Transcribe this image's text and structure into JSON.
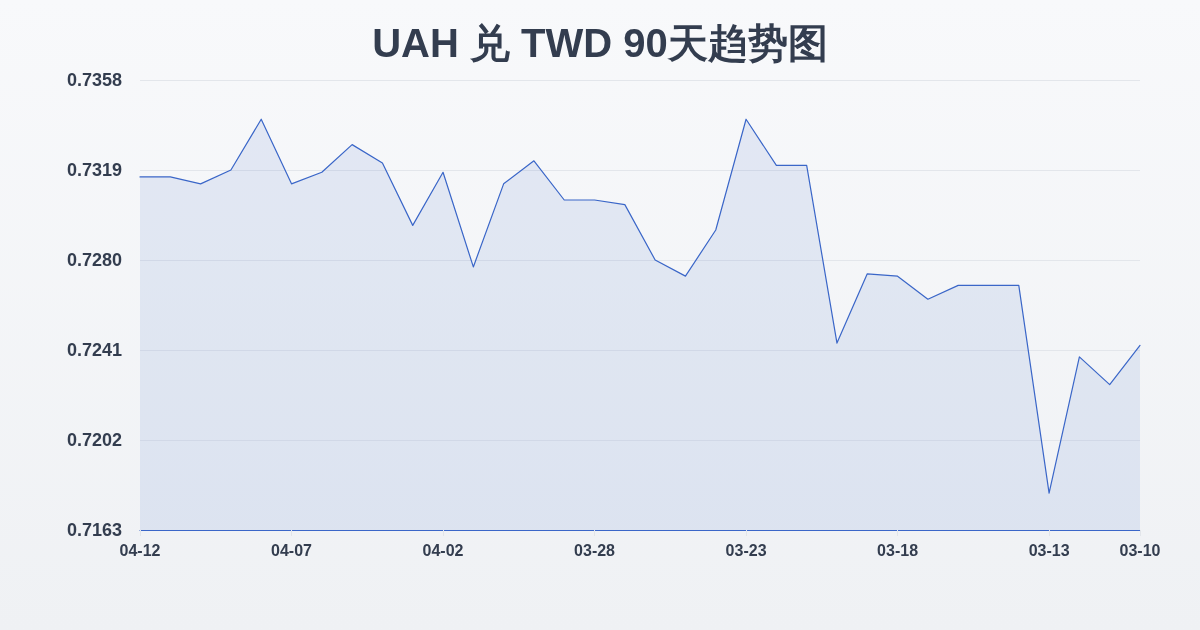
{
  "chart_data": {
    "type": "area",
    "title": "UAH 兑 TWD 90天趋势图",
    "categories": [
      "04-12",
      null,
      null,
      null,
      null,
      "04-07",
      null,
      null,
      null,
      null,
      "04-02",
      null,
      null,
      null,
      null,
      "03-28",
      null,
      null,
      null,
      null,
      "03-23",
      null,
      null,
      null,
      null,
      "03-18",
      null,
      null,
      null,
      null,
      "03-13",
      null,
      null,
      "03-10"
    ],
    "series": [
      {
        "color": "#3a66c8",
        "values": [
          0.7316,
          0.7316,
          0.7313,
          0.7319,
          0.7341,
          0.7313,
          0.7318,
          0.733,
          0.7322,
          0.7295,
          0.7318,
          0.7277,
          0.7313,
          0.7323,
          0.7306,
          0.7306,
          0.7304,
          0.728,
          0.7273,
          0.7293,
          0.7341,
          0.7321,
          0.7321,
          0.7244,
          0.7274,
          0.7273,
          0.7263,
          0.7269,
          0.7269,
          0.7269,
          0.7179,
          0.7238,
          0.7226,
          0.7243
        ]
      }
    ],
    "ylim": [
      0.7163,
      0.7358
    ],
    "yticks": [
      0.7163,
      0.7202,
      0.7241,
      {
        "value": 0.728,
        "label": "0.7280"
      },
      0.7319,
      0.7358
    ],
    "grid": "y",
    "marker": "none"
  }
}
